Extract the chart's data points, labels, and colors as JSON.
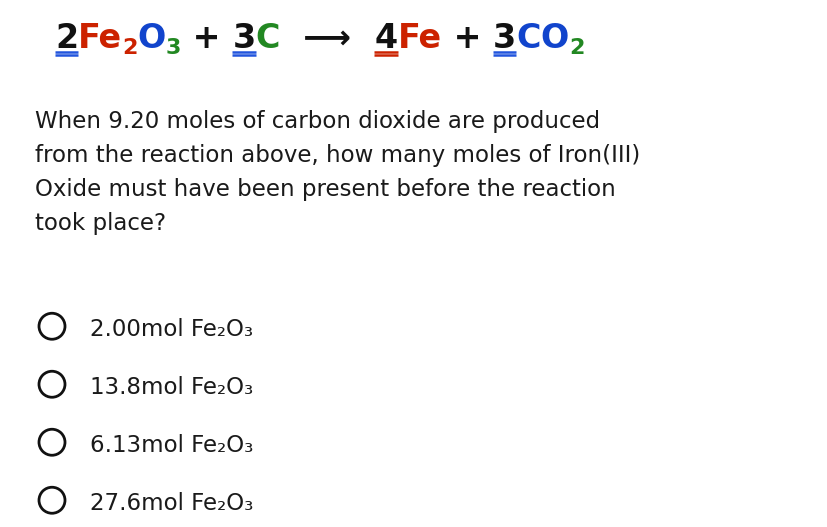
{
  "bg_color": "#ffffff",
  "text_color": "#1a1a1a",
  "body_text_lines": [
    "When 9.20 moles of carbon dioxide are produced",
    "from the reaction above, how many moles of Iron(III)",
    "Oxide must have been present before the reaction",
    "took place?"
  ],
  "choices_text": [
    "2.00mol Fe₂O₃",
    "13.8mol Fe₂O₃",
    "6.13mol Fe₂O₃",
    "27.6mol Fe₂O₃"
  ],
  "col_black": "#111111",
  "col_red": "#cc2200",
  "col_blue": "#1144cc",
  "col_green": "#228822",
  "col_blue_under": "#2255dd",
  "col_red_under": "#cc2200"
}
